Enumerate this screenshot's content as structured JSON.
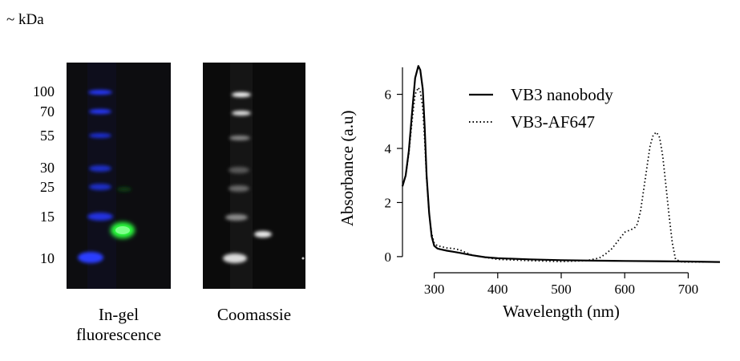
{
  "figure": {
    "kda_label": "~ kDa",
    "mw_markers": [
      {
        "label": "100",
        "kda": 100
      },
      {
        "label": "70",
        "kda": 70
      },
      {
        "label": "55",
        "kda": 55
      },
      {
        "label": "30",
        "kda": 30
      },
      {
        "label": "25",
        "kda": 25
      },
      {
        "label": "15",
        "kda": 15
      },
      {
        "label": "10",
        "kda": 10
      }
    ],
    "panels": {
      "fluorescence_line1": "In-gel",
      "fluorescence_line2": "fluorescence",
      "coomassie": "Coomassie"
    },
    "colors": {
      "gel_background": "#0c0c0c",
      "ladder_fluorescence": "#1f33ff",
      "sample_fluorescence": "#22ff33",
      "coomassie_band": "#f2f2f2"
    }
  },
  "chart_data": {
    "type": "line",
    "xlabel": "Wavelength (nm)",
    "ylabel": "Absorbance (a.u)",
    "xlim": [
      250,
      750
    ],
    "ylim": [
      -0.3,
      7.5
    ],
    "xticks": [
      300,
      400,
      500,
      600,
      700
    ],
    "yticks": [
      0,
      2,
      4,
      6
    ],
    "grid": false,
    "legend": "top-right",
    "series": [
      {
        "name": "VB3 nanobody",
        "style": "solid",
        "x": [
          250,
          255,
          260,
          265,
          270,
          275,
          278,
          282,
          285,
          288,
          292,
          296,
          300,
          305,
          310,
          320,
          330,
          340,
          360,
          380,
          400,
          450,
          500,
          550,
          600,
          650,
          700,
          750
        ],
        "y": [
          2.6,
          3.0,
          3.9,
          5.3,
          6.6,
          7.05,
          6.9,
          6.2,
          4.8,
          3.0,
          1.6,
          0.75,
          0.4,
          0.3,
          0.27,
          0.22,
          0.18,
          0.14,
          0.05,
          -0.02,
          -0.06,
          -0.1,
          -0.13,
          -0.15,
          -0.16,
          -0.17,
          -0.18,
          -0.2
        ]
      },
      {
        "name": "VB3-AF647",
        "style": "dotted",
        "x": [
          250,
          255,
          260,
          265,
          270,
          275,
          278,
          282,
          285,
          288,
          292,
          296,
          300,
          305,
          310,
          320,
          330,
          340,
          360,
          400,
          450,
          500,
          540,
          560,
          570,
          580,
          590,
          600,
          610,
          615,
          620,
          625,
          630,
          635,
          640,
          645,
          650,
          655,
          660,
          665,
          670,
          675,
          680,
          690,
          700,
          750
        ],
        "y": [
          2.6,
          3.0,
          3.8,
          5.0,
          6.0,
          6.25,
          6.1,
          5.5,
          4.3,
          2.9,
          1.6,
          0.85,
          0.5,
          0.4,
          0.38,
          0.32,
          0.3,
          0.25,
          0.05,
          -0.1,
          -0.15,
          -0.18,
          -0.15,
          -0.05,
          0.1,
          0.3,
          0.6,
          0.9,
          1.0,
          1.05,
          1.2,
          1.7,
          2.5,
          3.3,
          4.1,
          4.5,
          4.6,
          4.4,
          3.7,
          2.6,
          1.5,
          0.5,
          -0.1,
          -0.2,
          -0.2,
          -0.2
        ]
      }
    ]
  }
}
